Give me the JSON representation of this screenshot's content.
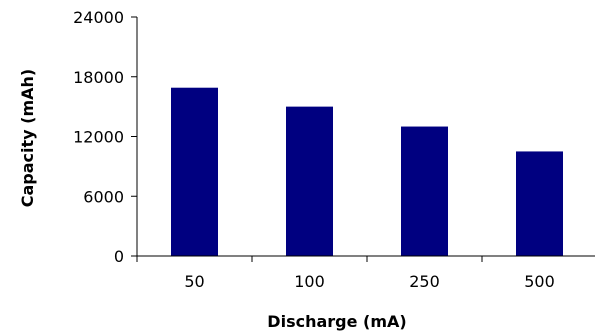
{
  "chart_data": {
    "type": "bar",
    "categories": [
      "50",
      "100",
      "250",
      "500"
    ],
    "series": [
      {
        "values": [
          16900,
          15000,
          13000,
          10500
        ]
      }
    ],
    "xlabel": "Discharge (mA)",
    "ylabel": "Capacity (mAh)",
    "ylim": [
      0,
      24000
    ],
    "yticks": [
      0,
      6000,
      12000,
      18000,
      24000
    ],
    "ytick_labels": [
      "0",
      "6000",
      "12000",
      "18000",
      "24000"
    ],
    "grid": false,
    "legend": "none",
    "bar_color": "#000080"
  }
}
